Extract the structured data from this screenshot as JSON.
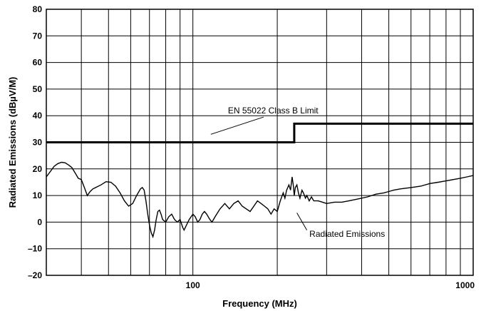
{
  "chart_data": {
    "type": "line",
    "xlabel": "Frequency (MHz)",
    "ylabel": "Radiated Emissions (dBµV/M)",
    "x_scale": "log",
    "xlim": [
      30,
      1000
    ],
    "ylim": [
      -20,
      80
    ],
    "x_ticks": [
      100,
      1000
    ],
    "x_tick_labels": [
      "100",
      "1000"
    ],
    "y_ticks": [
      -20,
      -10,
      0,
      10,
      20,
      30,
      40,
      50,
      60,
      70,
      80
    ],
    "y_tick_labels": [
      "–20",
      "–10",
      "0",
      "10",
      "20",
      "30",
      "40",
      "50",
      "60",
      "70",
      "80"
    ],
    "grid": true,
    "series": [
      {
        "name": "EN 55022 Class B Limit",
        "color": "#000000",
        "points": [
          [
            30,
            30
          ],
          [
            230,
            30
          ],
          [
            230,
            37
          ],
          [
            1000,
            37
          ]
        ]
      },
      {
        "name": "Radiated Emissions",
        "color": "#000000",
        "points": [
          [
            30,
            17
          ],
          [
            31,
            19
          ],
          [
            32,
            21
          ],
          [
            33,
            22
          ],
          [
            34,
            22.5
          ],
          [
            35,
            22.3
          ],
          [
            36,
            21.5
          ],
          [
            37,
            20.5
          ],
          [
            38,
            18.5
          ],
          [
            39,
            16.5
          ],
          [
            40,
            16
          ],
          [
            41,
            13
          ],
          [
            42,
            10
          ],
          [
            43,
            11.5
          ],
          [
            44,
            12.5
          ],
          [
            45,
            13
          ],
          [
            47,
            14
          ],
          [
            49,
            15.2
          ],
          [
            51,
            15
          ],
          [
            53,
            13.5
          ],
          [
            55,
            11
          ],
          [
            57,
            8
          ],
          [
            59,
            6
          ],
          [
            61,
            7
          ],
          [
            63,
            10
          ],
          [
            65,
            12.5
          ],
          [
            66,
            13
          ],
          [
            67,
            12
          ],
          [
            68,
            8
          ],
          [
            69,
            3
          ],
          [
            70,
            -1
          ],
          [
            71,
            -4
          ],
          [
            72,
            -5.5
          ],
          [
            73,
            -3
          ],
          [
            74,
            1
          ],
          [
            75,
            4
          ],
          [
            76,
            4.5
          ],
          [
            77,
            3
          ],
          [
            78,
            1
          ],
          [
            80,
            0
          ],
          [
            82,
            2
          ],
          [
            84,
            3
          ],
          [
            86,
            1
          ],
          [
            88,
            0
          ],
          [
            90,
            1
          ],
          [
            92,
            -2
          ],
          [
            93,
            -3
          ],
          [
            95,
            -1
          ],
          [
            97,
            1
          ],
          [
            100,
            3
          ],
          [
            102,
            2
          ],
          [
            104,
            0
          ],
          [
            106,
            1
          ],
          [
            108,
            3
          ],
          [
            110,
            4
          ],
          [
            112,
            3
          ],
          [
            115,
            1
          ],
          [
            117,
            0
          ],
          [
            120,
            2
          ],
          [
            125,
            5
          ],
          [
            130,
            7
          ],
          [
            135,
            5
          ],
          [
            140,
            7
          ],
          [
            145,
            8
          ],
          [
            150,
            6
          ],
          [
            155,
            5
          ],
          [
            160,
            4
          ],
          [
            165,
            6
          ],
          [
            170,
            8
          ],
          [
            175,
            7
          ],
          [
            180,
            6
          ],
          [
            185,
            5
          ],
          [
            190,
            3
          ],
          [
            195,
            5
          ],
          [
            200,
            4
          ],
          [
            205,
            8
          ],
          [
            210,
            11
          ],
          [
            213,
            9
          ],
          [
            216,
            12
          ],
          [
            220,
            14
          ],
          [
            223,
            12
          ],
          [
            226,
            17
          ],
          [
            228,
            14
          ],
          [
            230,
            10
          ],
          [
            232,
            13
          ],
          [
            235,
            14
          ],
          [
            238,
            11
          ],
          [
            241,
            9
          ],
          [
            245,
            12
          ],
          [
            248,
            11
          ],
          [
            252,
            9
          ],
          [
            255,
            10
          ],
          [
            260,
            8
          ],
          [
            265,
            9.5
          ],
          [
            270,
            8
          ],
          [
            280,
            8
          ],
          [
            290,
            7.5
          ],
          [
            300,
            7
          ],
          [
            320,
            7.5
          ],
          [
            340,
            7.5
          ],
          [
            360,
            8
          ],
          [
            380,
            8.5
          ],
          [
            400,
            9
          ],
          [
            420,
            9.5
          ],
          [
            450,
            10.5
          ],
          [
            480,
            11
          ],
          [
            500,
            11.5
          ],
          [
            520,
            12
          ],
          [
            550,
            12.5
          ],
          [
            600,
            13
          ],
          [
            650,
            13.5
          ],
          [
            700,
            14.5
          ],
          [
            750,
            15
          ],
          [
            800,
            15.5
          ],
          [
            850,
            16
          ],
          [
            900,
            16.5
          ],
          [
            950,
            17
          ],
          [
            1000,
            17.5
          ]
        ]
      }
    ],
    "annotations": [
      {
        "text": "EN 55022 Class B Limit",
        "at": [
          150,
          40.8
        ]
      },
      {
        "text": "Radiated Emissions",
        "at": [
          370,
          -5.5
        ]
      }
    ]
  }
}
